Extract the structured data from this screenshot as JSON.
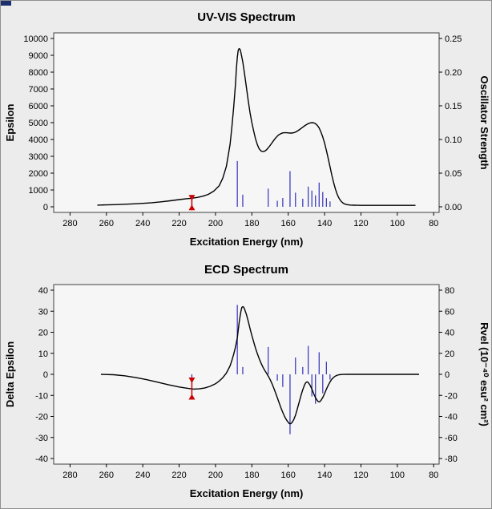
{
  "theme": {
    "bg": "#ececec",
    "plot_bg": "#f6f6f6",
    "frame": "#404040",
    "text": "#000000",
    "curve": "#000000",
    "stick": "#3030bb",
    "marker": "#cc0000",
    "corner_accent": "#1d2f6f",
    "window_border": "#8f8f8f"
  },
  "chart_data": [
    {
      "id": "uvvis",
      "type": "line+stick",
      "title": "UV-VIS Spectrum",
      "xlabel": "Excitation Energy (nm)",
      "ylabel_left": "Epsilon",
      "ylabel_right": "Oscillator Strength",
      "grid": false,
      "legend": null,
      "xlim": [
        289,
        77
      ],
      "xticks": [
        "280",
        "260",
        "240",
        "220",
        "200",
        "180",
        "160",
        "140",
        "120",
        "100",
        "80"
      ],
      "ylim_left": [
        0,
        10000
      ],
      "yticks_left": [
        "10000",
        "9000",
        "8000",
        "7000",
        "6000",
        "5000",
        "4000",
        "3000",
        "2000",
        "1000",
        "0"
      ],
      "ylim_right": [
        0,
        0.25
      ],
      "yticks_right": [
        "0.25",
        "0.20",
        "0.15",
        "0.10",
        "0.05",
        "0.00"
      ],
      "curve": {
        "axis": "left",
        "points": [
          [
            265,
            100
          ],
          [
            260,
            115
          ],
          [
            255,
            130
          ],
          [
            250,
            150
          ],
          [
            245,
            175
          ],
          [
            240,
            205
          ],
          [
            235,
            245
          ],
          [
            230,
            295
          ],
          [
            225,
            355
          ],
          [
            220,
            430
          ],
          [
            216,
            480
          ],
          [
            213,
            510
          ],
          [
            210,
            555
          ],
          [
            207,
            630
          ],
          [
            204,
            740
          ],
          [
            201,
            930
          ],
          [
            198,
            1250
          ],
          [
            196,
            1700
          ],
          [
            194,
            2400
          ],
          [
            192,
            3700
          ],
          [
            191,
            4700
          ],
          [
            190,
            5900
          ],
          [
            189,
            7300
          ],
          [
            188.5,
            8200
          ],
          [
            188,
            8900
          ],
          [
            187.5,
            9300
          ],
          [
            187,
            9400
          ],
          [
            186.5,
            9350
          ],
          [
            186,
            9150
          ],
          [
            185,
            8600
          ],
          [
            184,
            7900
          ],
          [
            183,
            7100
          ],
          [
            182,
            6300
          ],
          [
            181,
            5600
          ],
          [
            180,
            5000
          ],
          [
            179,
            4500
          ],
          [
            178,
            4050
          ],
          [
            177,
            3700
          ],
          [
            176,
            3450
          ],
          [
            175,
            3320
          ],
          [
            174,
            3280
          ],
          [
            173,
            3300
          ],
          [
            172,
            3380
          ],
          [
            171,
            3500
          ],
          [
            170,
            3640
          ],
          [
            169,
            3790
          ],
          [
            168,
            3940
          ],
          [
            167,
            4080
          ],
          [
            166,
            4200
          ],
          [
            165,
            4290
          ],
          [
            164,
            4350
          ],
          [
            163,
            4390
          ],
          [
            162,
            4400
          ],
          [
            161,
            4400
          ],
          [
            160,
            4390
          ],
          [
            159,
            4380
          ],
          [
            158,
            4380
          ],
          [
            157,
            4400
          ],
          [
            156,
            4440
          ],
          [
            155,
            4500
          ],
          [
            154,
            4570
          ],
          [
            153,
            4650
          ],
          [
            152,
            4730
          ],
          [
            151,
            4810
          ],
          [
            150,
            4880
          ],
          [
            149,
            4940
          ],
          [
            148,
            4980
          ],
          [
            147,
            5000
          ],
          [
            146,
            4990
          ],
          [
            145,
            4940
          ],
          [
            144,
            4840
          ],
          [
            143,
            4680
          ],
          [
            142,
            4450
          ],
          [
            141,
            4150
          ],
          [
            140,
            3780
          ],
          [
            139,
            3350
          ],
          [
            138,
            2870
          ],
          [
            137,
            2370
          ],
          [
            136,
            1880
          ],
          [
            135,
            1430
          ],
          [
            134,
            1040
          ],
          [
            133,
            730
          ],
          [
            132,
            500
          ],
          [
            131,
            340
          ],
          [
            130,
            235
          ],
          [
            129,
            170
          ],
          [
            128,
            135
          ],
          [
            126,
            105
          ],
          [
            124,
            95
          ],
          [
            122,
            90
          ],
          [
            120,
            88
          ],
          [
            117,
            86
          ],
          [
            114,
            85
          ],
          [
            110,
            85
          ],
          [
            105,
            85
          ],
          [
            100,
            85
          ],
          [
            95,
            85
          ],
          [
            90,
            85
          ]
        ]
      },
      "sticks": {
        "axis": "right",
        "points": [
          [
            213,
            0.012
          ],
          [
            188,
            0.068
          ],
          [
            185,
            0.018
          ],
          [
            171,
            0.027
          ],
          [
            166,
            0.009
          ],
          [
            163,
            0.013
          ],
          [
            159,
            0.053
          ],
          [
            156,
            0.021
          ],
          [
            152,
            0.012
          ],
          [
            149,
            0.03
          ],
          [
            147,
            0.024
          ],
          [
            145,
            0.017
          ],
          [
            143,
            0.036
          ],
          [
            141,
            0.022
          ],
          [
            139,
            0.013
          ],
          [
            137,
            0.008
          ]
        ]
      },
      "marker": {
        "x": 213,
        "y_from": -200,
        "y_to": 700,
        "axis": "left"
      }
    },
    {
      "id": "ecd",
      "type": "line+stick",
      "title": "ECD Spectrum",
      "xlabel": "Excitation Energy (nm)",
      "ylabel_left": "Delta Epsilon",
      "ylabel_right": "Rvel (10⁻⁴⁰ esu² cm²)",
      "grid": false,
      "legend": null,
      "xlim": [
        289,
        77
      ],
      "xticks": [
        "280",
        "260",
        "240",
        "220",
        "200",
        "180",
        "160",
        "140",
        "120",
        "100",
        "80"
      ],
      "ylim_left": [
        -40,
        40
      ],
      "yticks_left": [
        "40",
        "30",
        "20",
        "10",
        "0",
        "-10",
        "-20",
        "-30",
        "-40"
      ],
      "ylim_right": [
        -80,
        80
      ],
      "yticks_right": [
        "80",
        "60",
        "40",
        "20",
        "0",
        "-20",
        "-40",
        "-60",
        "-80"
      ],
      "curve": {
        "axis": "left",
        "points": [
          [
            263,
            0
          ],
          [
            256,
            -0.2
          ],
          [
            250,
            -0.7
          ],
          [
            244,
            -1.5
          ],
          [
            238,
            -2.5
          ],
          [
            232,
            -3.7
          ],
          [
            226,
            -4.9
          ],
          [
            220,
            -6.0
          ],
          [
            215,
            -6.7
          ],
          [
            212,
            -7.0
          ],
          [
            209,
            -6.9
          ],
          [
            206,
            -6.5
          ],
          [
            203,
            -5.7
          ],
          [
            200,
            -4.5
          ],
          [
            198,
            -3.2
          ],
          [
            196,
            -1.6
          ],
          [
            194,
            0.6
          ],
          [
            192,
            4.0
          ],
          [
            191,
            6.5
          ],
          [
            190,
            9.5
          ],
          [
            189,
            13.0
          ],
          [
            188,
            17.5
          ],
          [
            187.5,
            21.0
          ],
          [
            187,
            24.5
          ],
          [
            186.5,
            27.5
          ],
          [
            186,
            30.0
          ],
          [
            185.5,
            31.8
          ],
          [
            185,
            32.2
          ],
          [
            184.5,
            31.9
          ],
          [
            184,
            31.0
          ],
          [
            183,
            28.5
          ],
          [
            182,
            25.2
          ],
          [
            181,
            21.8
          ],
          [
            180,
            18.5
          ],
          [
            179,
            15.4
          ],
          [
            178,
            12.5
          ],
          [
            177,
            9.9
          ],
          [
            176,
            7.5
          ],
          [
            175,
            5.4
          ],
          [
            174,
            3.6
          ],
          [
            173,
            2.0
          ],
          [
            172,
            0.6
          ],
          [
            171,
            -0.8
          ],
          [
            170,
            -2.4
          ],
          [
            169,
            -4.3
          ],
          [
            168,
            -6.4
          ],
          [
            167,
            -8.7
          ],
          [
            166,
            -11.1
          ],
          [
            165,
            -13.5
          ],
          [
            164,
            -15.9
          ],
          [
            163,
            -18.1
          ],
          [
            162,
            -20.0
          ],
          [
            161,
            -21.6
          ],
          [
            160,
            -22.8
          ],
          [
            159.5,
            -23.3
          ],
          [
            159,
            -23.5
          ],
          [
            158.5,
            -23.4
          ],
          [
            158,
            -23.0
          ],
          [
            157,
            -21.6
          ],
          [
            156,
            -19.4
          ],
          [
            155,
            -16.5
          ],
          [
            154,
            -13.3
          ],
          [
            153,
            -10.1
          ],
          [
            152,
            -7.3
          ],
          [
            151,
            -5.0
          ],
          [
            150.5,
            -4.2
          ],
          [
            150,
            -3.7
          ],
          [
            149.5,
            -3.6
          ],
          [
            149,
            -3.9
          ],
          [
            148,
            -5.1
          ],
          [
            147,
            -7.0
          ],
          [
            146,
            -9.1
          ],
          [
            145,
            -11.1
          ],
          [
            144,
            -12.5
          ],
          [
            143.5,
            -12.9
          ],
          [
            143,
            -13.1
          ],
          [
            142.5,
            -12.9
          ],
          [
            142,
            -12.4
          ],
          [
            141,
            -11.0
          ],
          [
            140,
            -9.1
          ],
          [
            139,
            -7.1
          ],
          [
            138,
            -5.2
          ],
          [
            137,
            -3.6
          ],
          [
            136,
            -2.3
          ],
          [
            135,
            -1.4
          ],
          [
            134,
            -0.8
          ],
          [
            133,
            -0.4
          ],
          [
            132,
            -0.2
          ],
          [
            130,
            -0.05
          ],
          [
            128,
            0
          ],
          [
            125,
            0
          ],
          [
            121,
            0
          ],
          [
            116,
            0
          ],
          [
            110,
            0
          ],
          [
            103,
            0
          ],
          [
            96,
            0
          ],
          [
            88,
            0
          ]
        ]
      },
      "sticks": {
        "axis": "right",
        "points": [
          [
            213,
            -8
          ],
          [
            188,
            66
          ],
          [
            185,
            7
          ],
          [
            171,
            26
          ],
          [
            166,
            -6
          ],
          [
            163,
            -12
          ],
          [
            159,
            -57
          ],
          [
            156,
            16
          ],
          [
            152,
            7
          ],
          [
            149,
            27
          ],
          [
            147,
            -21
          ],
          [
            145,
            -28
          ],
          [
            143,
            21
          ],
          [
            141,
            -18
          ],
          [
            139,
            12
          ],
          [
            137,
            -5
          ]
        ]
      },
      "marker": {
        "x": 213,
        "y_from": -12,
        "y_to": -1.5,
        "axis": "left"
      }
    }
  ]
}
